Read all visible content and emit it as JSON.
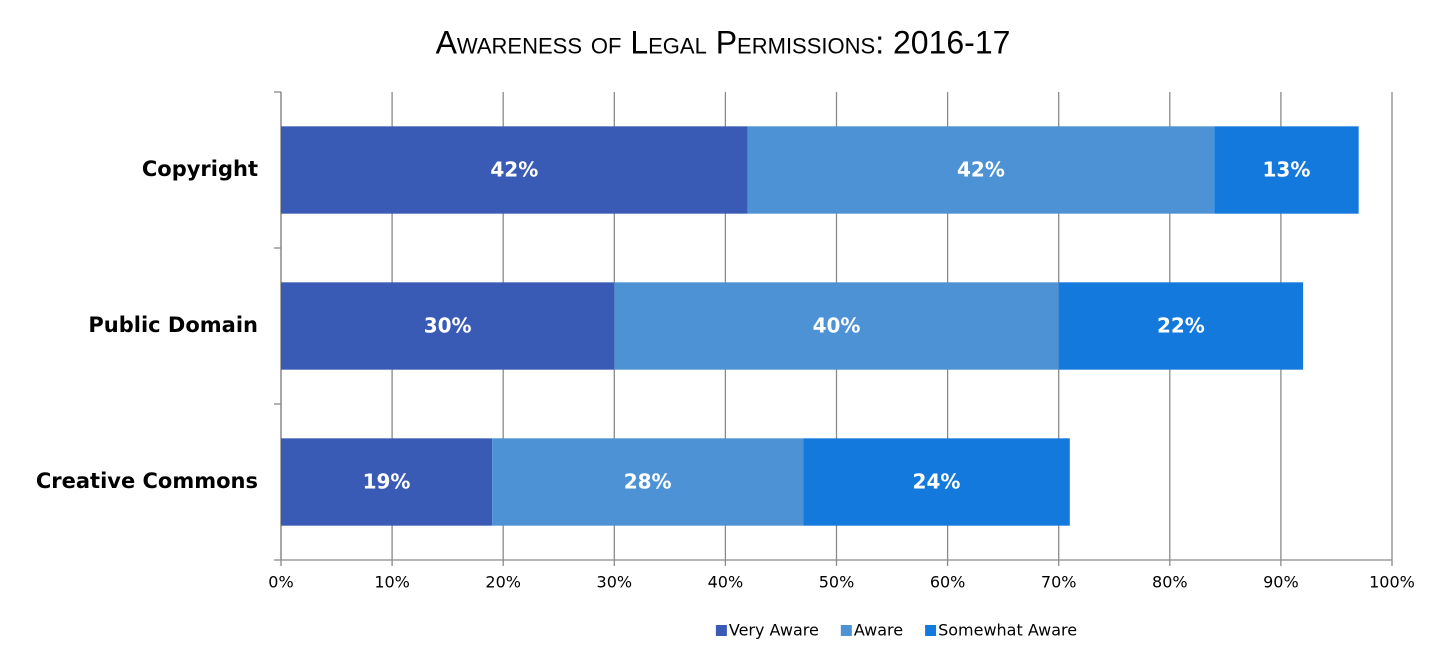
{
  "chart_data": {
    "type": "stacked-bar-horizontal",
    "title": "Awareness of Legal Permissions: 2016-17",
    "categories": [
      "Copyright",
      "Public Domain",
      "Creative Commons"
    ],
    "series": [
      {
        "name": "Very Aware",
        "color": "#3a5bb5",
        "values": [
          42,
          30,
          19
        ],
        "value_labels": [
          "42%",
          "30%",
          "19%"
        ]
      },
      {
        "name": "Aware",
        "color": "#4d92d5",
        "values": [
          42,
          40,
          28
        ],
        "value_labels": [
          "42%",
          "40%",
          "28%"
        ]
      },
      {
        "name": "Somewhat Aware",
        "color": "#1479dd",
        "values": [
          13,
          22,
          24
        ],
        "value_labels": [
          "13%",
          "22%",
          "24%"
        ]
      }
    ],
    "xlim": [
      0,
      100
    ],
    "xticks": [
      {
        "value": 0,
        "label": "0%"
      },
      {
        "value": 10,
        "label": "10%"
      },
      {
        "value": 20,
        "label": "20%"
      },
      {
        "value": 30,
        "label": "30%"
      },
      {
        "value": 40,
        "label": "40%"
      },
      {
        "value": 50,
        "label": "50%"
      },
      {
        "value": 60,
        "label": "60%"
      },
      {
        "value": 70,
        "label": "70%"
      },
      {
        "value": 80,
        "label": "80%"
      },
      {
        "value": 90,
        "label": "90%"
      },
      {
        "value": 100,
        "label": "100%"
      }
    ],
    "grid": true,
    "legend": "bottom"
  }
}
